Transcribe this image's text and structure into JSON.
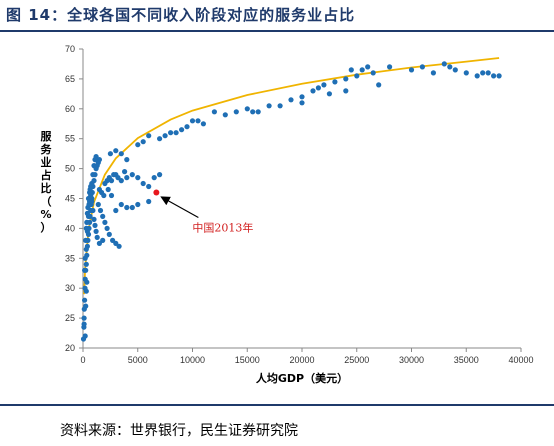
{
  "figure": {
    "title": "图 14：全球各国不同收入阶段对应的服务业占比",
    "source": "资料来源：世界银行，民生证券研究院"
  },
  "chart_data": {
    "type": "scatter",
    "xlabel": "人均GDP（美元）",
    "ylabel": "服务业占比（%）",
    "xlim": [
      0,
      40000
    ],
    "ylim": [
      20,
      70
    ],
    "xticks": [
      0,
      5000,
      10000,
      15000,
      20000,
      25000,
      30000,
      35000,
      40000
    ],
    "yticks": [
      20,
      25,
      30,
      35,
      40,
      45,
      50,
      55,
      60,
      65,
      70
    ],
    "grid": false,
    "colors": {
      "points": "#1f6fb5",
      "trend": "#f0b400",
      "highlight": "#e8171d",
      "annotation": "#d22020"
    },
    "trendline": {
      "type": "logarithmic",
      "x": [
        100,
        200,
        500,
        1000,
        2000,
        3000,
        5000,
        8000,
        10000,
        15000,
        20000,
        25000,
        30000,
        35000,
        38000
      ],
      "y": [
        29.0,
        33.5,
        39.7,
        44.4,
        49.0,
        51.7,
        55.1,
        58.2,
        59.7,
        62.3,
        64.2,
        65.7,
        66.9,
        67.9,
        68.5
      ]
    },
    "series": [
      {
        "points": [
          [
            50,
            21.5
          ],
          [
            80,
            23.5
          ],
          [
            100,
            25.0
          ],
          [
            120,
            26.5
          ],
          [
            150,
            28.0
          ],
          [
            180,
            30.0
          ],
          [
            200,
            31.5
          ],
          [
            250,
            33.0
          ],
          [
            300,
            34.0
          ],
          [
            350,
            35.5
          ],
          [
            400,
            37.0
          ],
          [
            450,
            38.0
          ],
          [
            500,
            39.0
          ],
          [
            550,
            40.0
          ],
          [
            600,
            41.0
          ],
          [
            650,
            42.0
          ],
          [
            700,
            43.0
          ],
          [
            750,
            44.0
          ],
          [
            800,
            45.0
          ],
          [
            850,
            46.0
          ],
          [
            900,
            47.0
          ],
          [
            1000,
            48.0
          ],
          [
            1100,
            49.0
          ],
          [
            1200,
            50.0
          ],
          [
            1300,
            50.5
          ],
          [
            1400,
            51.0
          ],
          [
            1500,
            51.5
          ],
          [
            300,
            36.5
          ],
          [
            400,
            39.5
          ],
          [
            500,
            42.0
          ],
          [
            600,
            44.5
          ],
          [
            700,
            45.5
          ],
          [
            800,
            47.5
          ],
          [
            900,
            49.0
          ],
          [
            1000,
            50.5
          ],
          [
            1100,
            51.5
          ],
          [
            1200,
            52.0
          ],
          [
            250,
            38.0
          ],
          [
            350,
            41.0
          ],
          [
            450,
            43.5
          ],
          [
            550,
            44.0
          ],
          [
            650,
            46.5
          ],
          [
            150,
            33.0
          ],
          [
            200,
            35.0
          ],
          [
            300,
            40.0
          ],
          [
            400,
            42.5
          ],
          [
            500,
            45.0
          ],
          [
            600,
            46.0
          ],
          [
            700,
            47.0
          ],
          [
            800,
            44.5
          ],
          [
            900,
            43.0
          ],
          [
            1000,
            41.5
          ],
          [
            1100,
            40.5
          ],
          [
            1200,
            39.5
          ],
          [
            1300,
            38.5
          ],
          [
            1500,
            37.5
          ],
          [
            1800,
            38.0
          ],
          [
            2000,
            47.5
          ],
          [
            2200,
            48.0
          ],
          [
            2400,
            48.5
          ],
          [
            2600,
            48.0
          ],
          [
            2800,
            49.0
          ],
          [
            3000,
            49.0
          ],
          [
            3200,
            48.5
          ],
          [
            3500,
            48.0
          ],
          [
            3800,
            49.5
          ],
          [
            4000,
            48.5
          ],
          [
            4500,
            49.0
          ],
          [
            5000,
            48.5
          ],
          [
            5500,
            47.5
          ],
          [
            6000,
            47.0
          ],
          [
            6500,
            48.5
          ],
          [
            7000,
            49.0
          ],
          [
            2500,
            52.5
          ],
          [
            3000,
            53.0
          ],
          [
            3500,
            52.5
          ],
          [
            4000,
            51.5
          ],
          [
            5000,
            54.0
          ],
          [
            5500,
            54.5
          ],
          [
            6000,
            55.5
          ],
          [
            3000,
            43.0
          ],
          [
            3500,
            44.0
          ],
          [
            4000,
            43.5
          ],
          [
            5000,
            44.0
          ],
          [
            6000,
            44.5
          ],
          [
            4500,
            43.5
          ],
          [
            1500,
            46.5
          ],
          [
            1700,
            46.0
          ],
          [
            1900,
            45.5
          ],
          [
            7000,
            55.0
          ],
          [
            8000,
            56.0
          ],
          [
            9000,
            56.5
          ],
          [
            10000,
            58.0
          ],
          [
            10500,
            58.0
          ],
          [
            12000,
            59.5
          ],
          [
            14000,
            59.5
          ],
          [
            15000,
            60.0
          ],
          [
            16000,
            59.5
          ],
          [
            17000,
            60.5
          ],
          [
            19000,
            61.5
          ],
          [
            20000,
            62.0
          ],
          [
            21000,
            63.0
          ],
          [
            22000,
            64.0
          ],
          [
            23000,
            64.5
          ],
          [
            24000,
            65.0
          ],
          [
            25000,
            65.5
          ],
          [
            26000,
            67.0
          ],
          [
            27000,
            64.0
          ],
          [
            28000,
            67.0
          ],
          [
            30000,
            66.5
          ],
          [
            31000,
            67.0
          ],
          [
            32000,
            66.0
          ],
          [
            33000,
            67.5
          ],
          [
            34000,
            66.5
          ],
          [
            35000,
            66.0
          ],
          [
            36000,
            65.5
          ],
          [
            37000,
            66.0
          ],
          [
            38000,
            65.5
          ],
          [
            24000,
            63.0
          ],
          [
            26500,
            66.0
          ],
          [
            22500,
            62.5
          ],
          [
            18000,
            60.5
          ],
          [
            20000,
            61.0
          ],
          [
            15500,
            59.5
          ],
          [
            13000,
            59.0
          ],
          [
            11000,
            57.5
          ],
          [
            9500,
            57.0
          ],
          [
            8500,
            56.0
          ],
          [
            7500,
            55.5
          ],
          [
            25500,
            66.5
          ],
          [
            36500,
            66.0
          ],
          [
            37500,
            65.5
          ],
          [
            33500,
            67.0
          ],
          [
            24500,
            66.5
          ],
          [
            21500,
            63.5
          ],
          [
            2300,
            46.5
          ],
          [
            2600,
            45.5
          ],
          [
            1400,
            44.0
          ],
          [
            1600,
            43.0
          ],
          [
            1800,
            42.0
          ],
          [
            2000,
            41.0
          ],
          [
            2200,
            40.0
          ],
          [
            2400,
            39.0
          ],
          [
            2700,
            38.0
          ],
          [
            3000,
            37.5
          ],
          [
            3300,
            37.0
          ],
          [
            200,
            22.0
          ],
          [
            250,
            27.0
          ],
          [
            300,
            29.5
          ],
          [
            350,
            31.0
          ],
          [
            100,
            24.0
          ]
        ]
      }
    ],
    "highlight": {
      "label": "中国2013年",
      "x": 6700,
      "y": 46.0
    }
  }
}
